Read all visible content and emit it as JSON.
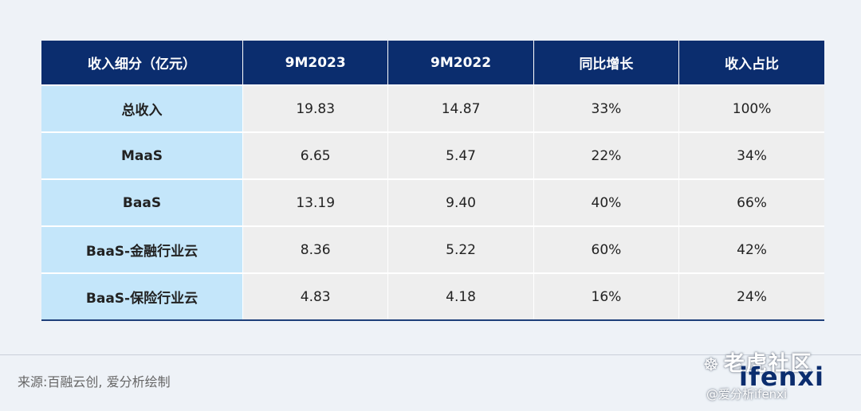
{
  "chart_data": {
    "type": "table",
    "columns": [
      "收入细分（亿元）",
      "9M2023",
      "9M2022",
      "同比增长",
      "收入占比"
    ],
    "rows": [
      [
        "总收入",
        "19.83",
        "14.87",
        "33%",
        "100%"
      ],
      [
        "MaaS",
        "6.65",
        "5.47",
        "22%",
        "34%"
      ],
      [
        "BaaS",
        "13.19",
        "9.40",
        "40%",
        "66%"
      ],
      [
        "BaaS-金融行业云",
        "8.36",
        "5.22",
        "60%",
        "42%"
      ],
      [
        "BaaS-保险行业云",
        "4.83",
        "4.18",
        "16%",
        "24%"
      ]
    ]
  },
  "footer": {
    "source": "来源:百融云创, 爱分析绘制"
  },
  "watermark": {
    "community": "老虎社区",
    "logo": "ifenxi",
    "handle": "@爱分析ifenxi"
  },
  "colors": {
    "header_bg": "#0b2d6e",
    "rowhead_bg": "#c4e6fa",
    "cell_bg": "#eeeeee",
    "page_bg": "#eef2f7"
  }
}
